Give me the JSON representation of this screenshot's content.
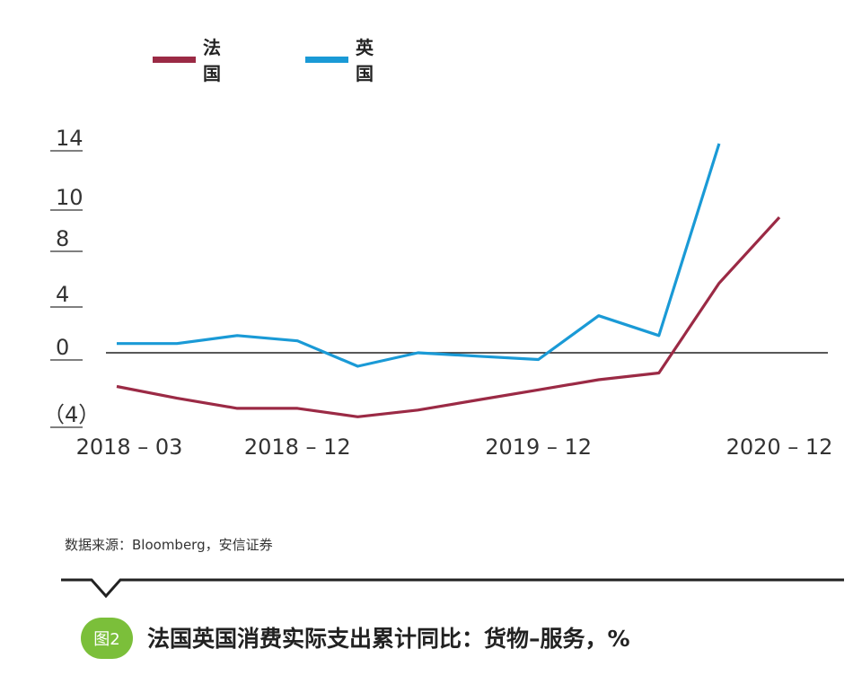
{
  "legend": {
    "items": [
      {
        "label": "法国",
        "color": "#9b2a45"
      },
      {
        "label": "英国",
        "color": "#1a9ad6"
      }
    ]
  },
  "chart_data": {
    "type": "line",
    "x": [
      "2018-03",
      "2018-06",
      "2018-09",
      "2018-12",
      "2019-03",
      "2019-06",
      "2019-09",
      "2019-12",
      "2020-03",
      "2020-06",
      "2020-09",
      "2020-12"
    ],
    "series": [
      {
        "name": "法国",
        "color": "#9b2a45",
        "values": [
          -2.0,
          -2.7,
          -3.3,
          -3.3,
          -3.8,
          -3.4,
          -2.8,
          -2.2,
          -1.6,
          -1.2,
          5.2,
          9.3
        ]
      },
      {
        "name": "英国",
        "color": "#1a9ad6",
        "values": [
          0.7,
          0.7,
          1.3,
          0.9,
          -0.8,
          0.0,
          -0.2,
          -0.4,
          2.8,
          1.3,
          14.0,
          null
        ]
      }
    ],
    "yticks": [
      {
        "value": 14,
        "label": "14"
      },
      {
        "value": 10,
        "label": "10"
      },
      {
        "value": 8,
        "label": "8"
      },
      {
        "value": 4,
        "label": "4"
      },
      {
        "value": 0,
        "label": "0"
      },
      {
        "value": -4,
        "label": "（4）"
      }
    ],
    "xticks": [
      {
        "index": 0,
        "label": "2018 – 03"
      },
      {
        "index": 3,
        "label": "2018 – 12"
      },
      {
        "index": 7,
        "label": "2019 – 12"
      },
      {
        "index": 11,
        "label": "2020 – 12"
      }
    ],
    "ylim": [
      -4,
      15
    ],
    "grid": false
  },
  "source_text": "数据来源：Bloomberg，安信证券",
  "figure_badge": "图2",
  "caption": "法国英国消费实际支出累计同比：货物–服务，%"
}
